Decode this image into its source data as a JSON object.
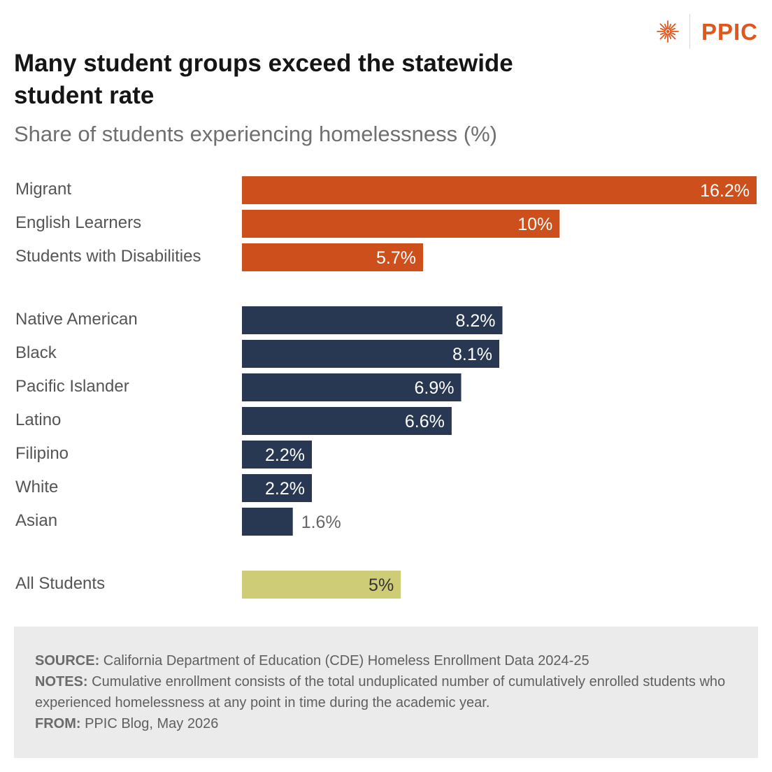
{
  "header": {
    "logo_text": "PPIC",
    "logo_icon": "starburst-icon",
    "brand_color": "#e0561d"
  },
  "title": "Many student groups exceed the statewide student rate",
  "subtitle": "Share of students experiencing homelessness (%)",
  "chart_data": {
    "type": "bar",
    "orientation": "horizontal",
    "title": "Many student groups exceed the statewide student rate",
    "subtitle": "Share of students experiencing homelessness (%)",
    "xlabel": "",
    "ylabel": "",
    "xlim": [
      0,
      16.2
    ],
    "grid": false,
    "groups": [
      {
        "color": "#cc4f1c",
        "categories": [
          "Migrant",
          "English Learners",
          "Students with Disabilities"
        ],
        "values": [
          16.2,
          10,
          5.7
        ],
        "labels": [
          "16.2%",
          "10%",
          "5.7%"
        ]
      },
      {
        "color": "#283852",
        "categories": [
          "Native American",
          "Black",
          "Pacific Islander",
          "Latino",
          "Filipino",
          "White",
          "Asian"
        ],
        "values": [
          8.2,
          8.1,
          6.9,
          6.6,
          2.2,
          2.2,
          1.6
        ],
        "labels": [
          "8.2%",
          "8.1%",
          "6.9%",
          "6.6%",
          "2.2%",
          "2.2%",
          "1.6%"
        ]
      },
      {
        "color": "#cfcc77",
        "categories": [
          "All Students"
        ],
        "values": [
          5
        ],
        "labels": [
          "5%"
        ]
      }
    ]
  },
  "footer": {
    "source_label": "SOURCE:",
    "source_text": "California Department of Education (CDE) Homeless Enrollment Data 2024-25",
    "notes_label": "NOTES:",
    "notes_text": "Cumulative enrollment consists of the total unduplicated number of cumulatively enrolled students who experienced homelessness at any point in time during the academic year.",
    "from_label": "FROM:",
    "from_text": "PPIC Blog, May 2026"
  }
}
